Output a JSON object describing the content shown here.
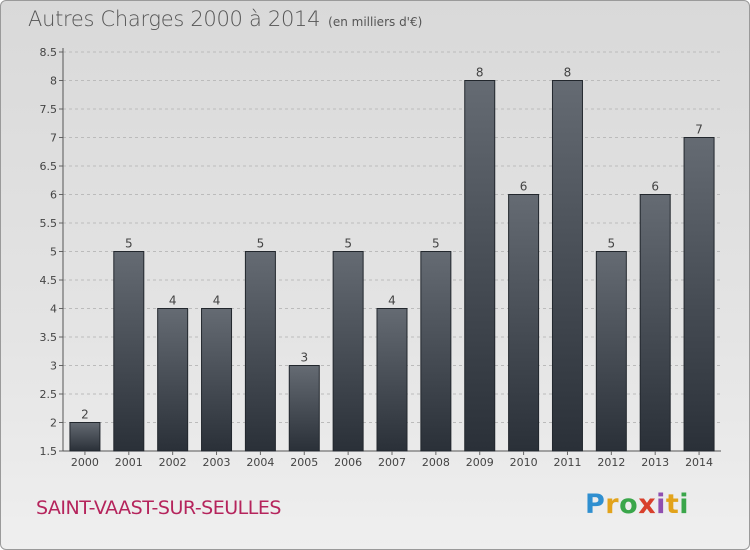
{
  "header": {
    "title": "Autres Charges 2000 à 2014",
    "unit": "(en milliers d'€)"
  },
  "footer": {
    "city": "SAINT-VAAST-SUR-SEULLES",
    "brand_letters": [
      "P",
      "r",
      "o",
      "x",
      "i",
      "t",
      "i"
    ]
  },
  "colors": {
    "bar_top": "#656b73",
    "bar_bottom": "#2a3038",
    "city": "#b5245c",
    "grid": "#bbbbbb"
  },
  "chart_data": {
    "type": "bar",
    "title": "Autres Charges 2000 à 2014",
    "subtitle": "(en milliers d'€)",
    "xlabel": "",
    "ylabel": "",
    "categories": [
      "2000",
      "2001",
      "2002",
      "2003",
      "2004",
      "2005",
      "2006",
      "2007",
      "2008",
      "2009",
      "2010",
      "2011",
      "2012",
      "2013",
      "2014"
    ],
    "values": [
      2,
      5,
      4,
      4,
      5,
      3,
      5,
      4,
      5,
      8,
      6,
      8,
      5,
      6,
      7
    ],
    "data_labels": [
      "2",
      "5",
      "4",
      "4",
      "5",
      "3",
      "5",
      "4",
      "5",
      "8",
      "6",
      "8",
      "5",
      "6",
      "7"
    ],
    "ylim": [
      1.5,
      8.5
    ],
    "yticks": [
      1.5,
      2,
      2.5,
      3,
      3.5,
      4,
      4.5,
      5,
      5.5,
      6,
      6.5,
      7,
      7.5,
      8,
      8.5
    ],
    "grid": true
  }
}
